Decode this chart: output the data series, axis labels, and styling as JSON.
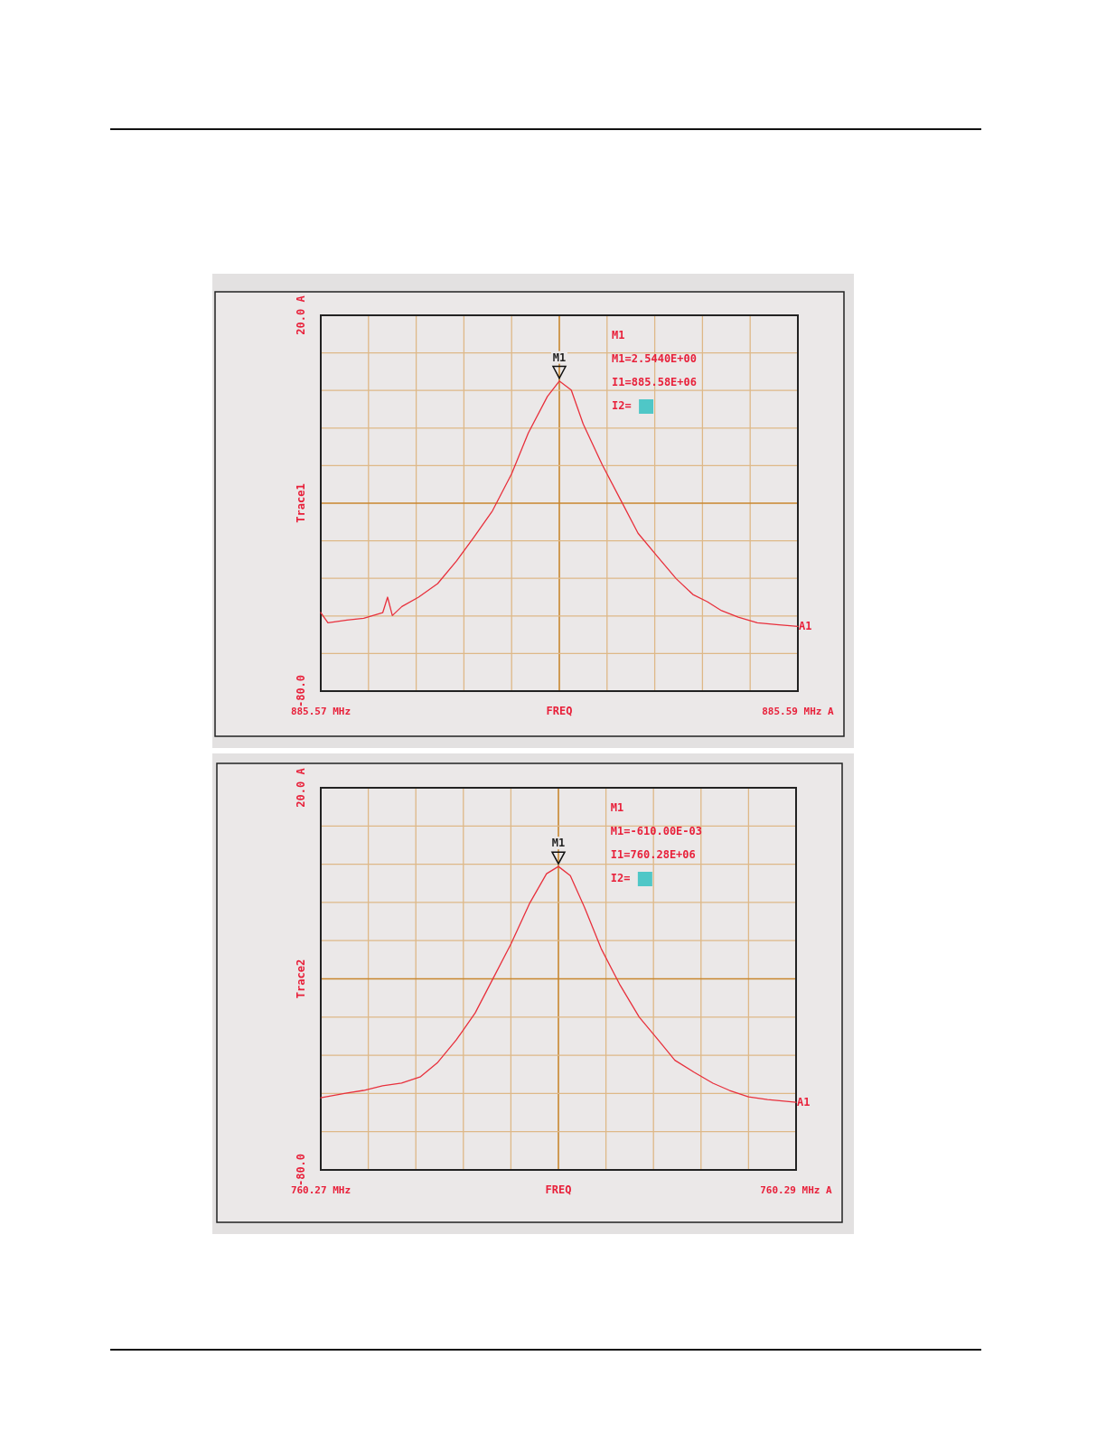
{
  "chart_data": [
    {
      "type": "line",
      "ylabel": "Trace1",
      "xlabel": "FREQ",
      "xlim": [
        885.57,
        885.59
      ],
      "ylim": [
        -80,
        20
      ],
      "xticks": [
        {
          "value": 885.57,
          "label": "885.57 MHz"
        },
        {
          "value": 885.572,
          "label": null
        },
        {
          "value": 885.574,
          "label": null
        },
        {
          "value": 885.576,
          "label": null
        },
        {
          "value": 885.578,
          "label": null
        },
        {
          "value": 885.58,
          "label": null
        },
        {
          "value": 885.582,
          "label": null
        },
        {
          "value": 885.584,
          "label": null
        },
        {
          "value": 885.586,
          "label": null
        },
        {
          "value": 885.588,
          "label": null
        },
        {
          "value": 885.59,
          "label": "885.59 MHz A"
        }
      ],
      "yticks": [
        {
          "value": -80,
          "label": "-80.0"
        },
        {
          "value": -70,
          "label": null
        },
        {
          "value": -60,
          "label": null
        },
        {
          "value": -50,
          "label": null
        },
        {
          "value": -40,
          "label": null
        },
        {
          "value": -30,
          "label": null
        },
        {
          "value": -20,
          "label": null
        },
        {
          "value": -10,
          "label": null
        },
        {
          "value": 0,
          "label": null
        },
        {
          "value": 10,
          "label": null
        },
        {
          "value": 20,
          "label": "20.0 A"
        }
      ],
      "grid": true,
      "marker": "none",
      "line_style": "solid",
      "series": [
        {
          "color": "#e8303c",
          "x": [
            885.57,
            885.5703,
            885.5711,
            885.5718,
            885.5726,
            885.5728,
            885.573,
            885.5734,
            885.5741,
            885.5749,
            885.5757,
            885.5764,
            885.5772,
            885.578,
            885.5787,
            885.5795,
            885.58,
            885.5805,
            885.581,
            885.5818,
            885.5826,
            885.5833,
            885.5841,
            885.5849,
            885.5856,
            885.5862,
            885.5868,
            885.5875,
            885.5883,
            885.5891,
            885.59
          ],
          "values": [
            -59.1,
            -61.8,
            -61.1,
            -60.6,
            -59.1,
            -55.0,
            -59.9,
            -57.5,
            -55.0,
            -51.4,
            -45.3,
            -39.2,
            -32.0,
            -22.2,
            -11.3,
            -1.6,
            2.5,
            0.1,
            -8.9,
            -19.8,
            -29.5,
            -38.0,
            -44.1,
            -50.1,
            -54.3,
            -56.2,
            -58.6,
            -60.3,
            -61.8,
            -62.3,
            -62.8
          ]
        }
      ],
      "annotations": [
        {
          "text": "M1",
          "x": 885.58,
          "y": 2.544
        },
        "M1",
        "M1=2.5440E+00",
        "I1=885.58E+06",
        "I2=",
        {
          "text": "A1",
          "x": 885.59,
          "y": -62.8
        }
      ]
    },
    {
      "type": "line",
      "ylabel": "Trace2",
      "xlabel": "FREQ",
      "xlim": [
        760.27,
        760.29
      ],
      "ylim": [
        -80,
        20
      ],
      "xticks": [
        {
          "value": 760.27,
          "label": "760.27 MHz"
        },
        {
          "value": 760.272,
          "label": null
        },
        {
          "value": 760.274,
          "label": null
        },
        {
          "value": 760.276,
          "label": null
        },
        {
          "value": 760.278,
          "label": null
        },
        {
          "value": 760.28,
          "label": null
        },
        {
          "value": 760.282,
          "label": null
        },
        {
          "value": 760.284,
          "label": null
        },
        {
          "value": 760.286,
          "label": null
        },
        {
          "value": 760.288,
          "label": null
        },
        {
          "value": 760.29,
          "label": "760.29 MHz A"
        }
      ],
      "yticks": [
        {
          "value": -80,
          "label": "-80.0"
        },
        {
          "value": -70,
          "label": null
        },
        {
          "value": -60,
          "label": null
        },
        {
          "value": -50,
          "label": null
        },
        {
          "value": -40,
          "label": null
        },
        {
          "value": -30,
          "label": null
        },
        {
          "value": -20,
          "label": null
        },
        {
          "value": -10,
          "label": null
        },
        {
          "value": 0,
          "label": null
        },
        {
          "value": 10,
          "label": null
        },
        {
          "value": 20,
          "label": "20.0 A"
        }
      ],
      "grid": true,
      "marker": "none",
      "line_style": "solid",
      "series": [
        {
          "color": "#e8303c",
          "x": [
            760.27,
            760.2711,
            760.2718,
            760.2726,
            760.2734,
            760.2742,
            760.2749,
            760.2757,
            760.2765,
            760.2772,
            760.278,
            760.2788,
            760.2795,
            760.28,
            760.2805,
            760.2811,
            760.2818,
            760.2826,
            760.2834,
            760.2842,
            760.2849,
            760.2857,
            760.2865,
            760.2872,
            760.288,
            760.2888,
            760.29
          ],
          "values": [
            -61.1,
            -59.9,
            -59.2,
            -58.0,
            -57.3,
            -55.6,
            -52.0,
            -46.0,
            -38.9,
            -30.5,
            -20.9,
            -10.1,
            -2.5,
            -0.6,
            -3.0,
            -11.3,
            -22.1,
            -31.7,
            -40.0,
            -46.0,
            -51.3,
            -54.4,
            -57.3,
            -59.2,
            -60.9,
            -61.6,
            -62.3
          ]
        }
      ],
      "annotations": [
        {
          "text": "M1",
          "x": 760.28,
          "y": -0.61
        },
        "M1",
        "M1=-610.00E-03",
        "I1=760.28E+06",
        "I2=",
        {
          "text": "A1",
          "x": 760.29,
          "y": -62.3
        }
      ]
    }
  ]
}
